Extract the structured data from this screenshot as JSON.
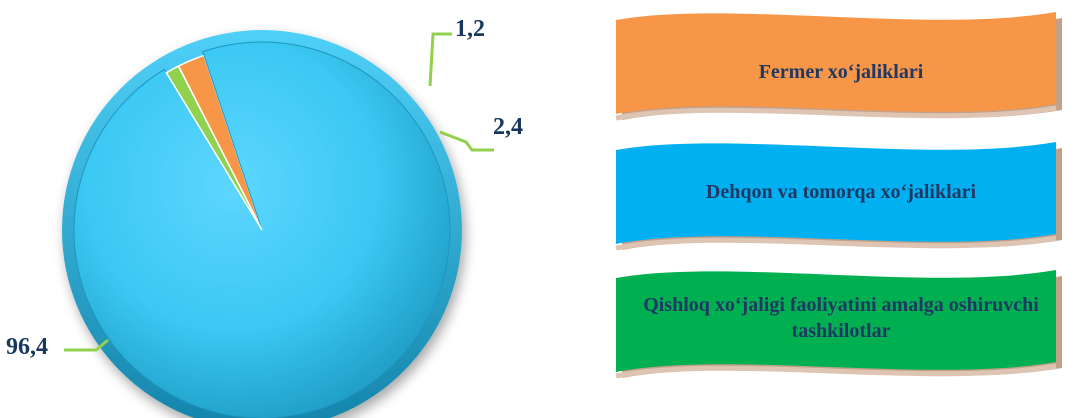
{
  "chart_data": {
    "type": "pie",
    "title": "",
    "categories": [
      "Fermer xo‘jaliklari",
      "Dehqon va tomorqa xo‘jaliklari",
      "Qishloq xo‘jaligi faoliyatini amalga oshiruvchi tashkilotlar"
    ],
    "values": [
      2.4,
      96.4,
      1.2
    ],
    "data_labels": [
      "2,4",
      "96,4",
      "1,2"
    ],
    "colors": [
      "#f79646",
      "#3fc8f4",
      "#92d050"
    ],
    "legend": {
      "placement": "right"
    }
  },
  "legend": {
    "items": [
      {
        "label": "Fermer xo‘jaliklari",
        "color": "#f79646"
      },
      {
        "label": "Dehqon va tomorqa xo‘jaliklari",
        "color": "#00b0f0"
      },
      {
        "label": "Qishloq xo‘jaligi faoliyatini amalga oshiruvchi tashkilotlar",
        "color": "#00b050"
      }
    ]
  }
}
